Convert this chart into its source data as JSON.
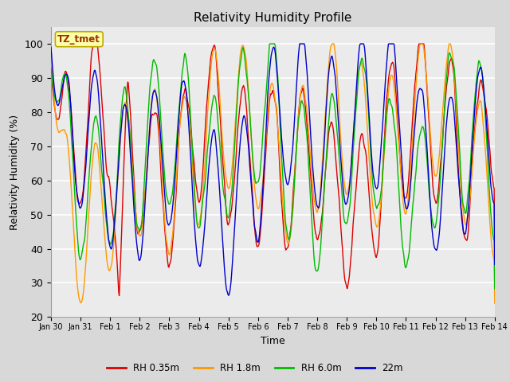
{
  "title": "Relativity Humidity Profile",
  "xlabel": "Time",
  "ylabel": "Relativity Humidity (%)",
  "ylim": [
    20,
    105
  ],
  "yticks": [
    20,
    30,
    40,
    50,
    60,
    70,
    80,
    90,
    100
  ],
  "background_color": "#d8d8d8",
  "plot_bg_color": "#ebebeb",
  "grid_color": "white",
  "line_colors": {
    "RH 0.35m": "#dd0000",
    "RH 1.8m": "#ff9900",
    "RH 6.0m": "#00bb00",
    "22m": "#0000cc"
  },
  "legend_labels": [
    "RH 0.35m",
    "RH 1.8m",
    "RH 6.0m",
    "22m"
  ],
  "tz_label": "TZ_tmet",
  "tz_bg": "#ffffaa",
  "tz_border": "#bbaa00",
  "n_points": 840
}
